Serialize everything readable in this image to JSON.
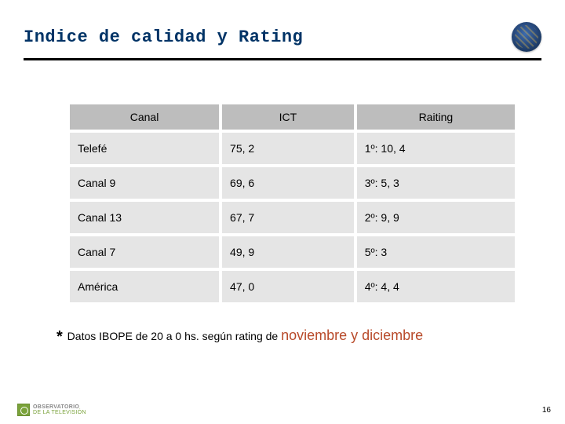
{
  "title": "Indice de calidad y Rating",
  "table": {
    "columns": [
      "Canal",
      "ICT",
      "Raiting"
    ],
    "rows": [
      [
        "Telefé",
        "75, 2",
        "1º: 10, 4"
      ],
      [
        "Canal 9",
        "69, 6",
        "3º: 5, 3"
      ],
      [
        "Canal 13",
        "67, 7",
        "2º: 9, 9"
      ],
      [
        "Canal 7",
        "49, 9",
        "5º: 3"
      ],
      [
        "América",
        "47, 0",
        "4º: 4, 4"
      ]
    ],
    "header_bg": "#bdbdbd",
    "cell_bg": "#e5e5e5",
    "font_size": 14
  },
  "footnote": {
    "ast": "*",
    "pre": " Datos IBOPE de 20 a 0 hs. según rating de ",
    "highlight": "noviembre y diciembre",
    "highlight_color": "#b84a2a"
  },
  "footer_logo": {
    "line1": "OBSERVATORIO",
    "line2": "DE LA TELEVISIÓN"
  },
  "slide_number": "16",
  "colors": {
    "title": "#003366",
    "rule": "#000000",
    "background": "#ffffff"
  }
}
